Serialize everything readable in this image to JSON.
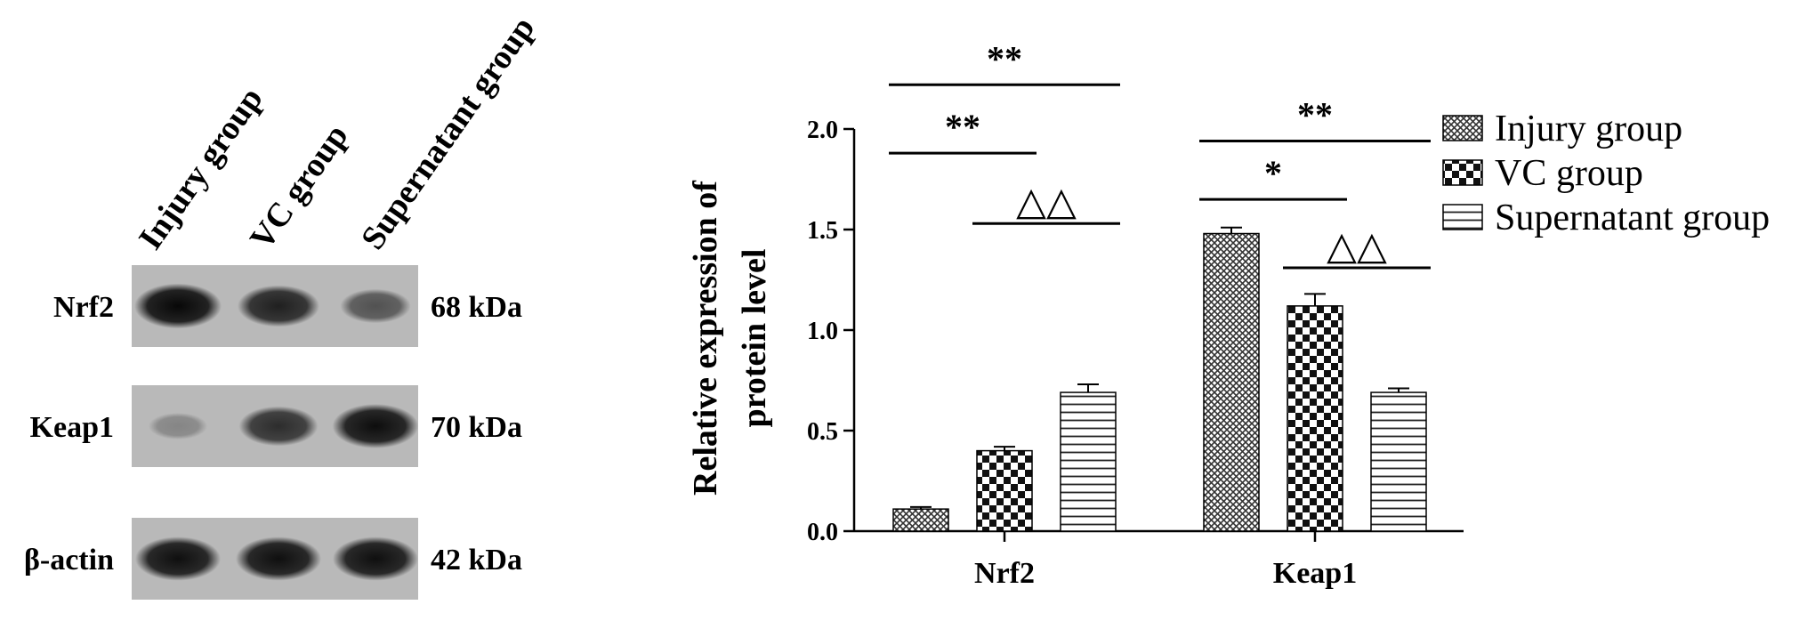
{
  "western_blot": {
    "lanes": [
      "Injury group",
      "VC group",
      "Supernatant group"
    ],
    "rows": [
      {
        "protein": "Nrf2",
        "size": "68 kDa",
        "intensity": [
          0.95,
          0.8,
          0.48
        ]
      },
      {
        "protein": "Keap1",
        "size": "70 kDa",
        "intensity": [
          0.15,
          0.72,
          0.92
        ]
      },
      {
        "protein": "β-actin",
        "size": "42 kDa",
        "intensity": [
          0.9,
          0.9,
          0.9
        ]
      }
    ]
  },
  "chart_data": {
    "type": "bar",
    "categories": [
      "Nrf2",
      "Keap1"
    ],
    "series": [
      {
        "name": "Injury group",
        "pattern": "crosshatch",
        "values": [
          0.11,
          1.48
        ],
        "errors": [
          0.01,
          0.03
        ]
      },
      {
        "name": "VC group",
        "pattern": "checker",
        "values": [
          0.4,
          1.12
        ],
        "errors": [
          0.02,
          0.06
        ]
      },
      {
        "name": "Supernatant group",
        "pattern": "horizontal-lines",
        "values": [
          0.69,
          0.69
        ],
        "errors": [
          0.04,
          0.02
        ]
      }
    ],
    "ylabel_line1": "Relative expression of",
    "ylabel_line2": "protein level",
    "ylim": [
      0,
      2.0
    ],
    "yticks": [
      "0.0",
      "0.5",
      "1.0",
      "1.5",
      "2.0"
    ],
    "legend_position": "top-right",
    "grid": false,
    "significance": [
      {
        "category": 0,
        "from": 0,
        "to": 2,
        "label": "**",
        "level": 2.22
      },
      {
        "category": 0,
        "from": 0,
        "to": 1,
        "label": "**",
        "level": 1.88
      },
      {
        "category": 0,
        "from": 1,
        "to": 2,
        "label": "△△",
        "level": 1.53
      },
      {
        "category": 1,
        "from": 0,
        "to": 2,
        "label": "**",
        "level": 1.94
      },
      {
        "category": 1,
        "from": 0,
        "to": 1,
        "label": "*",
        "level": 1.65
      },
      {
        "category": 1,
        "from": 1,
        "to": 2,
        "label": "△△",
        "level": 1.31
      }
    ]
  }
}
